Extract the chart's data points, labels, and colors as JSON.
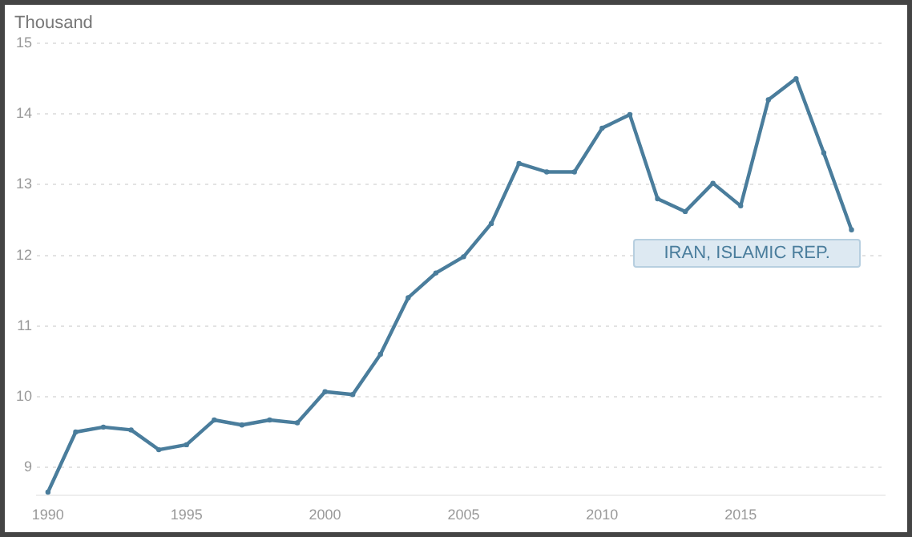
{
  "chart_data": {
    "type": "line",
    "ylabel": "Thousand",
    "x": [
      1990,
      1991,
      1992,
      1993,
      1994,
      1995,
      1996,
      1997,
      1998,
      1999,
      2000,
      2001,
      2002,
      2003,
      2004,
      2005,
      2006,
      2007,
      2008,
      2009,
      2010,
      2011,
      2012,
      2013,
      2014,
      2015,
      2016,
      2017,
      2018,
      2019
    ],
    "series": [
      {
        "name": "IRAN, ISLAMIC REP.",
        "color": "#4a7d9c",
        "values": [
          8.65,
          9.5,
          9.57,
          9.53,
          9.25,
          9.32,
          9.67,
          9.6,
          9.67,
          9.63,
          10.07,
          10.03,
          10.6,
          11.4,
          11.75,
          11.98,
          12.45,
          13.3,
          13.18,
          13.18,
          13.8,
          13.99,
          12.8,
          12.62,
          13.02,
          12.7,
          14.2,
          14.5,
          13.45,
          12.36
        ]
      }
    ],
    "xlim": [
      1989.6,
      2020.2
    ],
    "xticks": [
      1990,
      1995,
      2000,
      2005,
      2010,
      2015
    ],
    "ylim": [
      8.6,
      15
    ],
    "yticks": [
      9,
      10,
      11,
      12,
      13,
      14,
      15
    ],
    "grid": "y",
    "legend": false,
    "marker": "circle",
    "line_style": "solid"
  }
}
